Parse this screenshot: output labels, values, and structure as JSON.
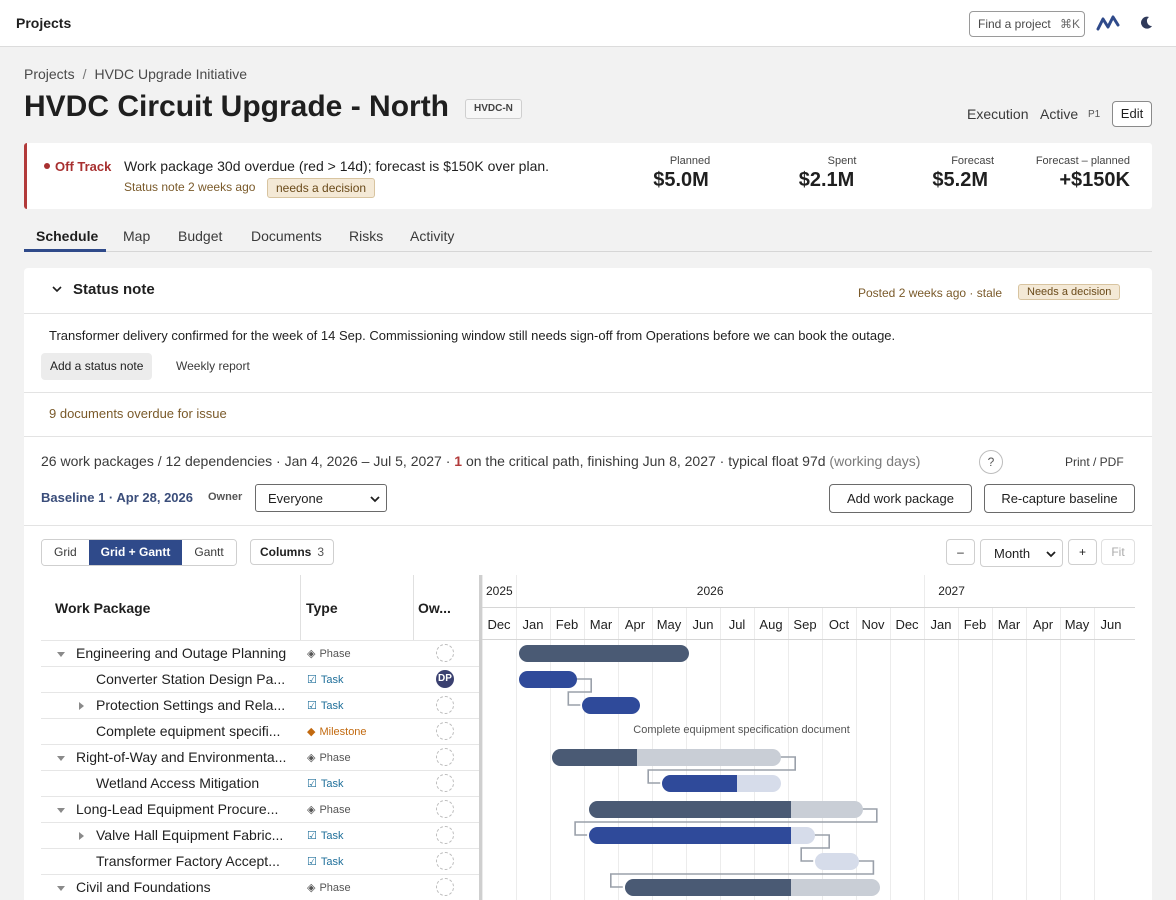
{
  "topbar": {
    "title": "Projects",
    "search_placeholder": "Find a project",
    "search_shortcut": "⌘K"
  },
  "breadcrumb": [
    "Projects",
    "HVDC Upgrade Initiative"
  ],
  "project": {
    "title": "HVDC Circuit Upgrade - North",
    "code": "HVDC-N",
    "phase": "Execution",
    "state": "Active",
    "priority": "P1",
    "edit_label": "Edit"
  },
  "alert": {
    "status": "Off Track",
    "message": "Work package 30d overdue (red > 14d); forecast is $150K over plan.",
    "note": "Status note 2 weeks ago",
    "decision": "needs a decision",
    "metrics": [
      {
        "label": "Planned",
        "value": "$5.0M"
      },
      {
        "label": "Spent",
        "value": "$2.1M"
      },
      {
        "label": "Forecast",
        "value": "$5.2M"
      },
      {
        "label": "Forecast – planned",
        "value": "+$150K"
      }
    ]
  },
  "tabs": [
    "Schedule",
    "Map",
    "Budget",
    "Documents",
    "Risks",
    "Activity"
  ],
  "status_note": {
    "title": "Status note",
    "posted": "Posted 2 weeks ago · stale",
    "decision": "Needs a decision",
    "body": "Transformer delivery confirmed for the week of 14 Sep. Commissioning window still needs sign-off from Operations before we can book the outage.",
    "add_label": "Add a status note",
    "weekly_label": "Weekly report"
  },
  "overdue_docs": "9 documents overdue for issue",
  "summary": {
    "text1": "26 work packages / 12 dependencies · Jan 4, 2026 – Jul 5, 2027 · ",
    "critical": "1",
    "text2": " on the critical path, finishing Jun 8, 2027 · typical float 97d ",
    "muted": "(working days)",
    "help": "?",
    "print": "Print / PDF"
  },
  "baseline": {
    "label": "Baseline 1 · Apr 28, 2026",
    "owner_label": "Owner",
    "owner_value": "Everyone"
  },
  "actions": {
    "add": "Add work package",
    "recapture": "Re-capture baseline"
  },
  "views": {
    "grid": "Grid",
    "grid_gantt": "Grid + Gantt",
    "gantt": "Gantt",
    "columns": "Columns",
    "columns_count": "3"
  },
  "zoom": {
    "minus": "–",
    "scale": "Month",
    "plus": "+",
    "fit": "Fit"
  },
  "grid": {
    "headers": [
      "Work Package",
      "Type",
      "Ow..."
    ]
  },
  "rows": [
    {
      "name": "Engineering and Outage Planning",
      "type": "Phase",
      "level": 0,
      "toggle": "open",
      "owner": ""
    },
    {
      "name": "Converter Station Design Pa...",
      "type": "Task",
      "level": 1,
      "toggle": "",
      "owner": "DP"
    },
    {
      "name": "Protection Settings and Rela...",
      "type": "Task",
      "level": 1,
      "toggle": "closed",
      "owner": ""
    },
    {
      "name": "Complete equipment specifi...",
      "type": "Milestone",
      "level": 1,
      "toggle": "",
      "owner": ""
    },
    {
      "name": "Right-of-Way and Environmenta...",
      "type": "Phase",
      "level": 0,
      "toggle": "open",
      "owner": ""
    },
    {
      "name": "Wetland Access Mitigation",
      "type": "Task",
      "level": 1,
      "toggle": "",
      "owner": ""
    },
    {
      "name": "Long-Lead Equipment Procure...",
      "type": "Phase",
      "level": 0,
      "toggle": "open",
      "owner": ""
    },
    {
      "name": "Valve Hall Equipment Fabric...",
      "type": "Task",
      "level": 1,
      "toggle": "closed",
      "owner": ""
    },
    {
      "name": "Transformer Factory Accept...",
      "type": "Task",
      "level": 1,
      "toggle": "",
      "owner": ""
    },
    {
      "name": "Civil and Foundations",
      "type": "Phase",
      "level": 0,
      "toggle": "open",
      "owner": ""
    }
  ],
  "gantt": {
    "years": [
      {
        "label": "2025",
        "month_index": 0
      },
      {
        "label": "2026",
        "month_index": 6.2
      },
      {
        "label": "2027",
        "month_index": 13.3
      }
    ],
    "months": [
      "Dec",
      "Jan",
      "Feb",
      "Mar",
      "Apr",
      "May",
      "Jun",
      "Jul",
      "Aug",
      "Sep",
      "Oct",
      "Nov",
      "Dec",
      "Jan",
      "Feb",
      "Mar",
      "Apr",
      "May",
      "Jun"
    ],
    "milestone_label": "Complete equipment specification document",
    "bars": [
      {
        "row": 0,
        "start": 1.1,
        "end": 6.1,
        "done": 6.1,
        "kind": "phase"
      },
      {
        "row": 1,
        "start": 1.1,
        "end": 2.8,
        "done": 2.8,
        "kind": "task"
      },
      {
        "row": 2,
        "start": 2.95,
        "end": 4.65,
        "done": 4.65,
        "kind": "task"
      },
      {
        "row": 4,
        "start": 2.05,
        "end": 8.8,
        "done": 4.55,
        "kind": "phase"
      },
      {
        "row": 5,
        "start": 5.3,
        "end": 8.8,
        "done": 7.5,
        "kind": "task"
      },
      {
        "row": 6,
        "start": 3.15,
        "end": 11.2,
        "done": 9.1,
        "kind": "phase"
      },
      {
        "row": 7,
        "start": 3.15,
        "end": 9.8,
        "done": 9.1,
        "kind": "task"
      },
      {
        "row": 8,
        "start": 9.8,
        "end": 11.1,
        "done": 9.8,
        "kind": "task"
      },
      {
        "row": 9,
        "start": 4.2,
        "end": 11.7,
        "done": 9.1,
        "kind": "phase"
      }
    ]
  }
}
